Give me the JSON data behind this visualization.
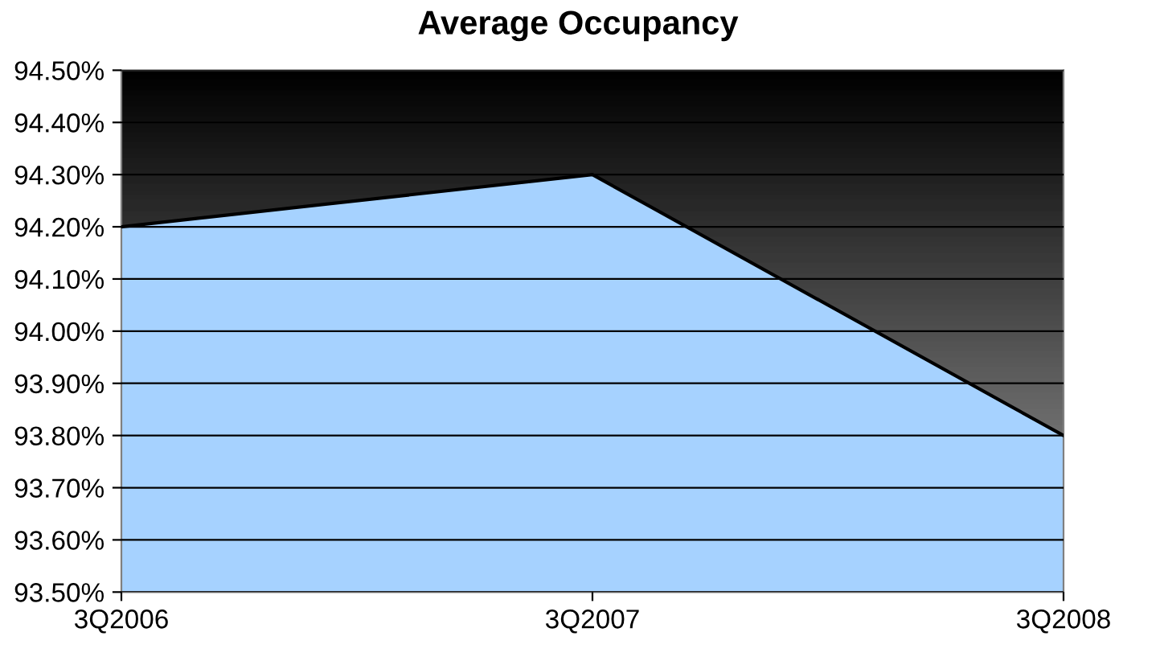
{
  "chart_data": {
    "type": "area",
    "title": "Average Occupancy",
    "categories": [
      "3Q2006",
      "3Q2007",
      "3Q2008"
    ],
    "series": [
      {
        "color": "#a6d2ff",
        "values": [
          94.2,
          94.3,
          93.8
        ]
      }
    ],
    "ylim": [
      93.5,
      94.5
    ],
    "yticks": [
      {
        "value": 93.5,
        "label": "93.50%"
      },
      {
        "value": 93.6,
        "label": "93.60%"
      },
      {
        "value": 93.7,
        "label": "93.70%"
      },
      {
        "value": 93.8,
        "label": "93.80%"
      },
      {
        "value": 93.9,
        "label": "93.90%"
      },
      {
        "value": 94.0,
        "label": "94.00%"
      },
      {
        "value": 94.1,
        "label": "94.10%"
      },
      {
        "value": 94.2,
        "label": "94.20%"
      },
      {
        "value": 94.3,
        "label": "94.30%"
      },
      {
        "value": 94.4,
        "label": "94.40%"
      },
      {
        "value": 94.5,
        "label": "94.50%"
      }
    ],
    "grid": "y",
    "legend": false
  }
}
